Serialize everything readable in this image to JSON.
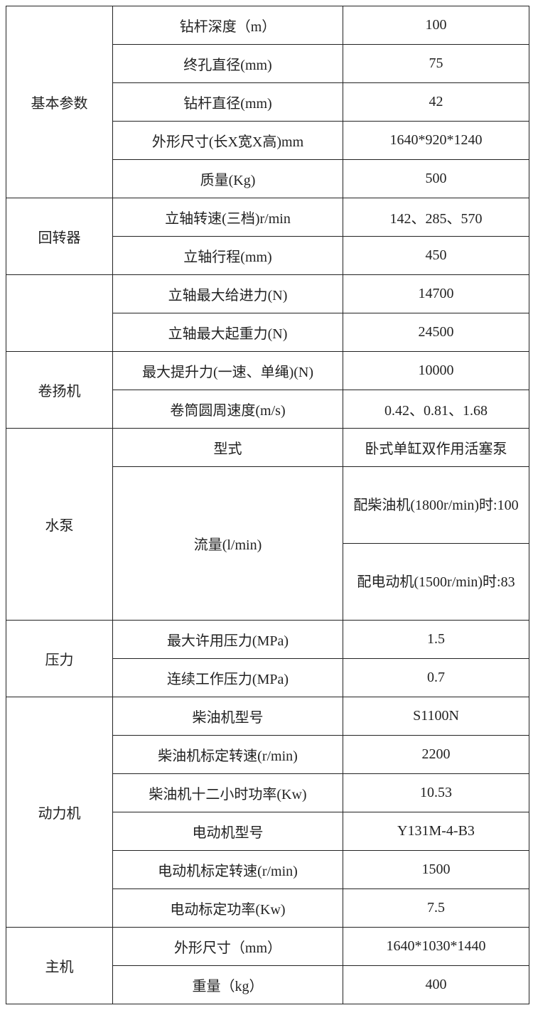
{
  "groups": [
    {
      "name": "基本参数",
      "rows": [
        {
          "param": "钻杆深度（m）",
          "value": "100"
        },
        {
          "param": "终孔直径(mm)",
          "value": "75"
        },
        {
          "param": "钻杆直径(mm)",
          "value": "42"
        },
        {
          "param": "外形尺寸(长X宽X高)mm",
          "value": "1640*920*1240"
        },
        {
          "param": "质量(Kg)",
          "value": "500"
        }
      ]
    },
    {
      "name": "回转器",
      "rows": [
        {
          "param": "立轴转速(三档)r/min",
          "value": "142、285、570"
        },
        {
          "param": "立轴行程(mm)",
          "value": "450"
        }
      ]
    },
    {
      "name": "",
      "rows": [
        {
          "param": "立轴最大给进力(N)",
          "value": "14700"
        },
        {
          "param": "立轴最大起重力(N)",
          "value": "24500"
        }
      ]
    },
    {
      "name": "卷扬机",
      "rows": [
        {
          "param": "最大提升力(一速、单绳)(N)",
          "value": "10000"
        },
        {
          "param": "卷筒圆周速度(m/s)",
          "value": "0.42、0.81、1.68"
        }
      ]
    },
    {
      "name": "水泵",
      "rows": [
        {
          "param": "型式",
          "value": "卧式单缸双作用活塞泵"
        },
        {
          "param": "流量(l/min)",
          "values": [
            "配柴油机(1800r/min)时:100",
            "配电动机(1500r/min)时:83"
          ]
        }
      ]
    },
    {
      "name": "压力",
      "rows": [
        {
          "param": "最大许用压力(MPa)",
          "value": "1.5"
        },
        {
          "param": "连续工作压力(MPa)",
          "value": "0.7"
        }
      ]
    },
    {
      "name": "动力机",
      "rows": [
        {
          "param": "柴油机型号",
          "value": "S1100N"
        },
        {
          "param": "柴油机标定转速(r/min)",
          "value": "2200"
        },
        {
          "param": "柴油机十二小时功率(Kw)",
          "value": "10.53"
        },
        {
          "param": "电动机型号",
          "value": "Y131M-4-B3"
        },
        {
          "param": "电动机标定转速(r/min)",
          "value": "1500"
        },
        {
          "param": "电动标定功率(Kw)",
          "value": "7.5"
        }
      ]
    },
    {
      "name": "主机",
      "rows": [
        {
          "param": "外形尺寸（mm）",
          "value": "1640*1030*1440"
        },
        {
          "param": "重量（kg）",
          "value": "400"
        }
      ]
    }
  ]
}
